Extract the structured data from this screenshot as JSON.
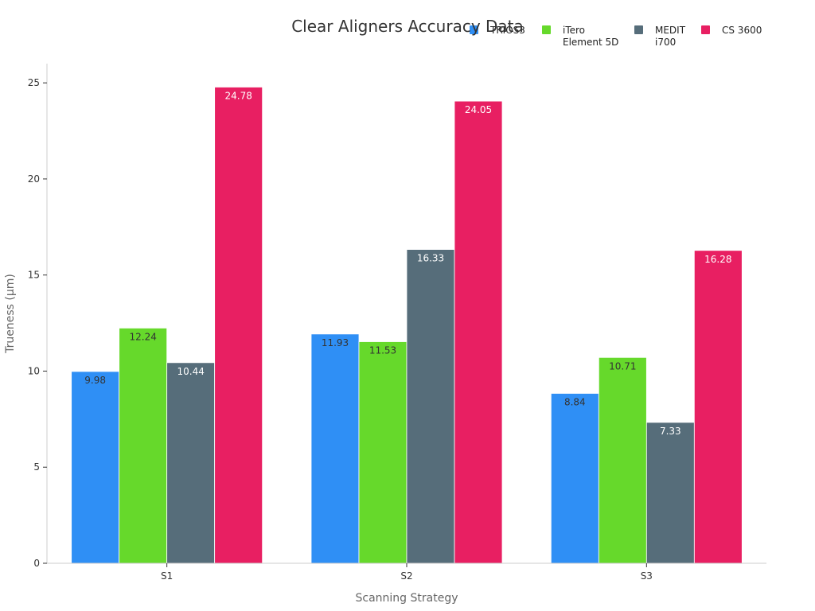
{
  "chart_data": {
    "type": "bar",
    "title": "Clear Aligners Accuracy Data",
    "xlabel": "Scanning Strategy",
    "ylabel": "Trueness (µm)",
    "categories": [
      "S1",
      "S2",
      "S3"
    ],
    "ylim": [
      0,
      26
    ],
    "yticks": [
      0,
      5,
      10,
      15,
      20,
      25
    ],
    "grid": false,
    "legend_position": "top-right",
    "series": [
      {
        "name": "TRIOS3",
        "color": "#2f8ff5",
        "label_color": "#333333",
        "values": [
          9.98,
          11.93,
          8.84
        ]
      },
      {
        "name": "iTero Element 5D",
        "legend_lines": [
          "iTero",
          "Element 5D"
        ],
        "color": "#66d92b",
        "label_color": "#333333",
        "values": [
          12.24,
          11.53,
          10.71
        ]
      },
      {
        "name": "MEDIT i700",
        "legend_lines": [
          "MEDIT",
          "i700"
        ],
        "color": "#566d7a",
        "label_color": "#ffffff",
        "values": [
          10.44,
          16.33,
          7.33
        ]
      },
      {
        "name": "CS 3600",
        "color": "#e81f62",
        "label_color": "#ffffff",
        "values": [
          24.78,
          24.05,
          16.28
        ]
      }
    ]
  }
}
